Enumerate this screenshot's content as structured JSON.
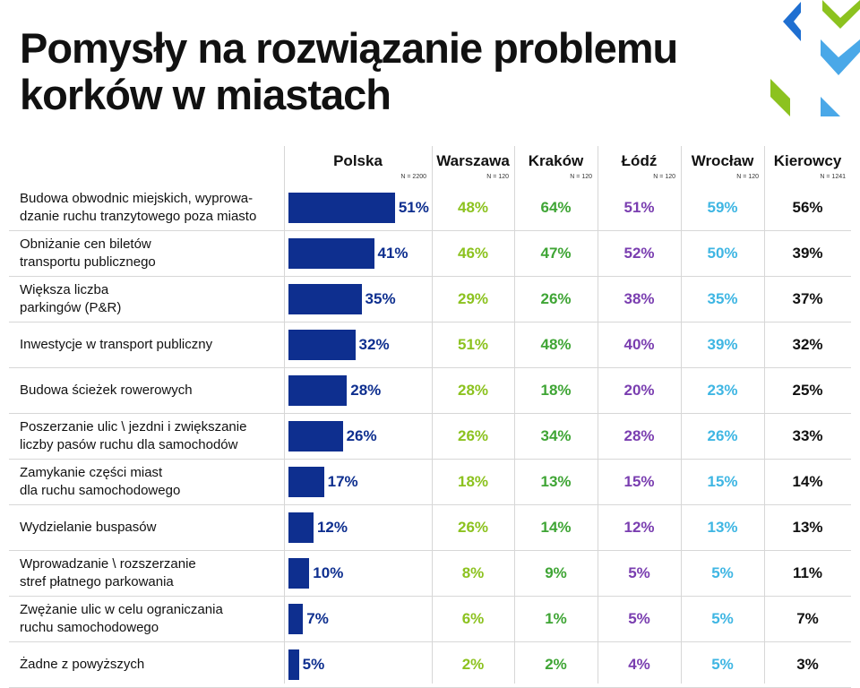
{
  "title_line1": "Pomysły na rozwiązanie problemu",
  "title_line2": "korków w miastach",
  "colors": {
    "polska": "#0e2f8f",
    "warszawa": "#8cc21f",
    "krakow": "#3fa535",
    "lodz": "#7a3eb0",
    "wroclaw": "#3fb6e3",
    "kierowcy": "#111111",
    "deco_blue": "#1f6fd1",
    "deco_green": "#8cc21f",
    "deco_light": "#4aa8e8"
  },
  "icons": [
    "chevron-left-blue-icon",
    "chevron-down-green-icon",
    "chevron-down-blue-icon",
    "chevron-green-icon",
    "triangle-light-blue-icon"
  ],
  "chart_data": {
    "type": "table",
    "columns": [
      {
        "name": "Polska",
        "n": "N = 2200"
      },
      {
        "name": "Warszawa",
        "n": "N = 120"
      },
      {
        "name": "Kraków",
        "n": "N = 120"
      },
      {
        "name": "Łódź",
        "n": "N = 120"
      },
      {
        "name": "Wrocław",
        "n": "N = 120"
      },
      {
        "name": "Kierowcy",
        "n": "N = 1241"
      }
    ],
    "rows": [
      {
        "label": "Budowa obwodnic miejskich, wyprowa-\ndzanie ruchu tranzytowego poza miasto",
        "values": [
          51,
          48,
          64,
          51,
          59,
          56
        ]
      },
      {
        "label": "Obniżanie cen biletów\ntransportu publicznego",
        "values": [
          41,
          46,
          47,
          52,
          50,
          39
        ]
      },
      {
        "label": "Większa liczba\nparkingów (P&R)",
        "values": [
          35,
          29,
          26,
          38,
          35,
          37
        ]
      },
      {
        "label": "Inwestycje w transport publiczny",
        "values": [
          32,
          51,
          48,
          40,
          39,
          32
        ]
      },
      {
        "label": "Budowa ścieżek rowerowych",
        "values": [
          28,
          28,
          18,
          20,
          23,
          25
        ]
      },
      {
        "label": "Poszerzanie ulic \\ jezdni i zwiększanie\nliczby pasów ruchu dla samochodów",
        "values": [
          26,
          26,
          34,
          28,
          26,
          33
        ]
      },
      {
        "label": "Zamykanie części miast\ndla ruchu samochodowego",
        "values": [
          17,
          18,
          13,
          15,
          15,
          14
        ]
      },
      {
        "label": "Wydzielanie buspasów",
        "values": [
          12,
          26,
          14,
          12,
          13,
          13
        ]
      },
      {
        "label": "Wprowadzanie \\ rozszerzanie\nstref płatnego parkowania",
        "values": [
          10,
          8,
          9,
          5,
          5,
          11
        ]
      },
      {
        "label": "Zwężanie ulic w celu ograniczania\nruchu samochodowego",
        "values": [
          7,
          6,
          1,
          5,
          5,
          7
        ]
      },
      {
        "label": "Żadne z powyższych",
        "values": [
          5,
          2,
          2,
          4,
          5,
          3
        ]
      }
    ],
    "unit": "%",
    "bar_column": "Polska",
    "grid": true
  }
}
